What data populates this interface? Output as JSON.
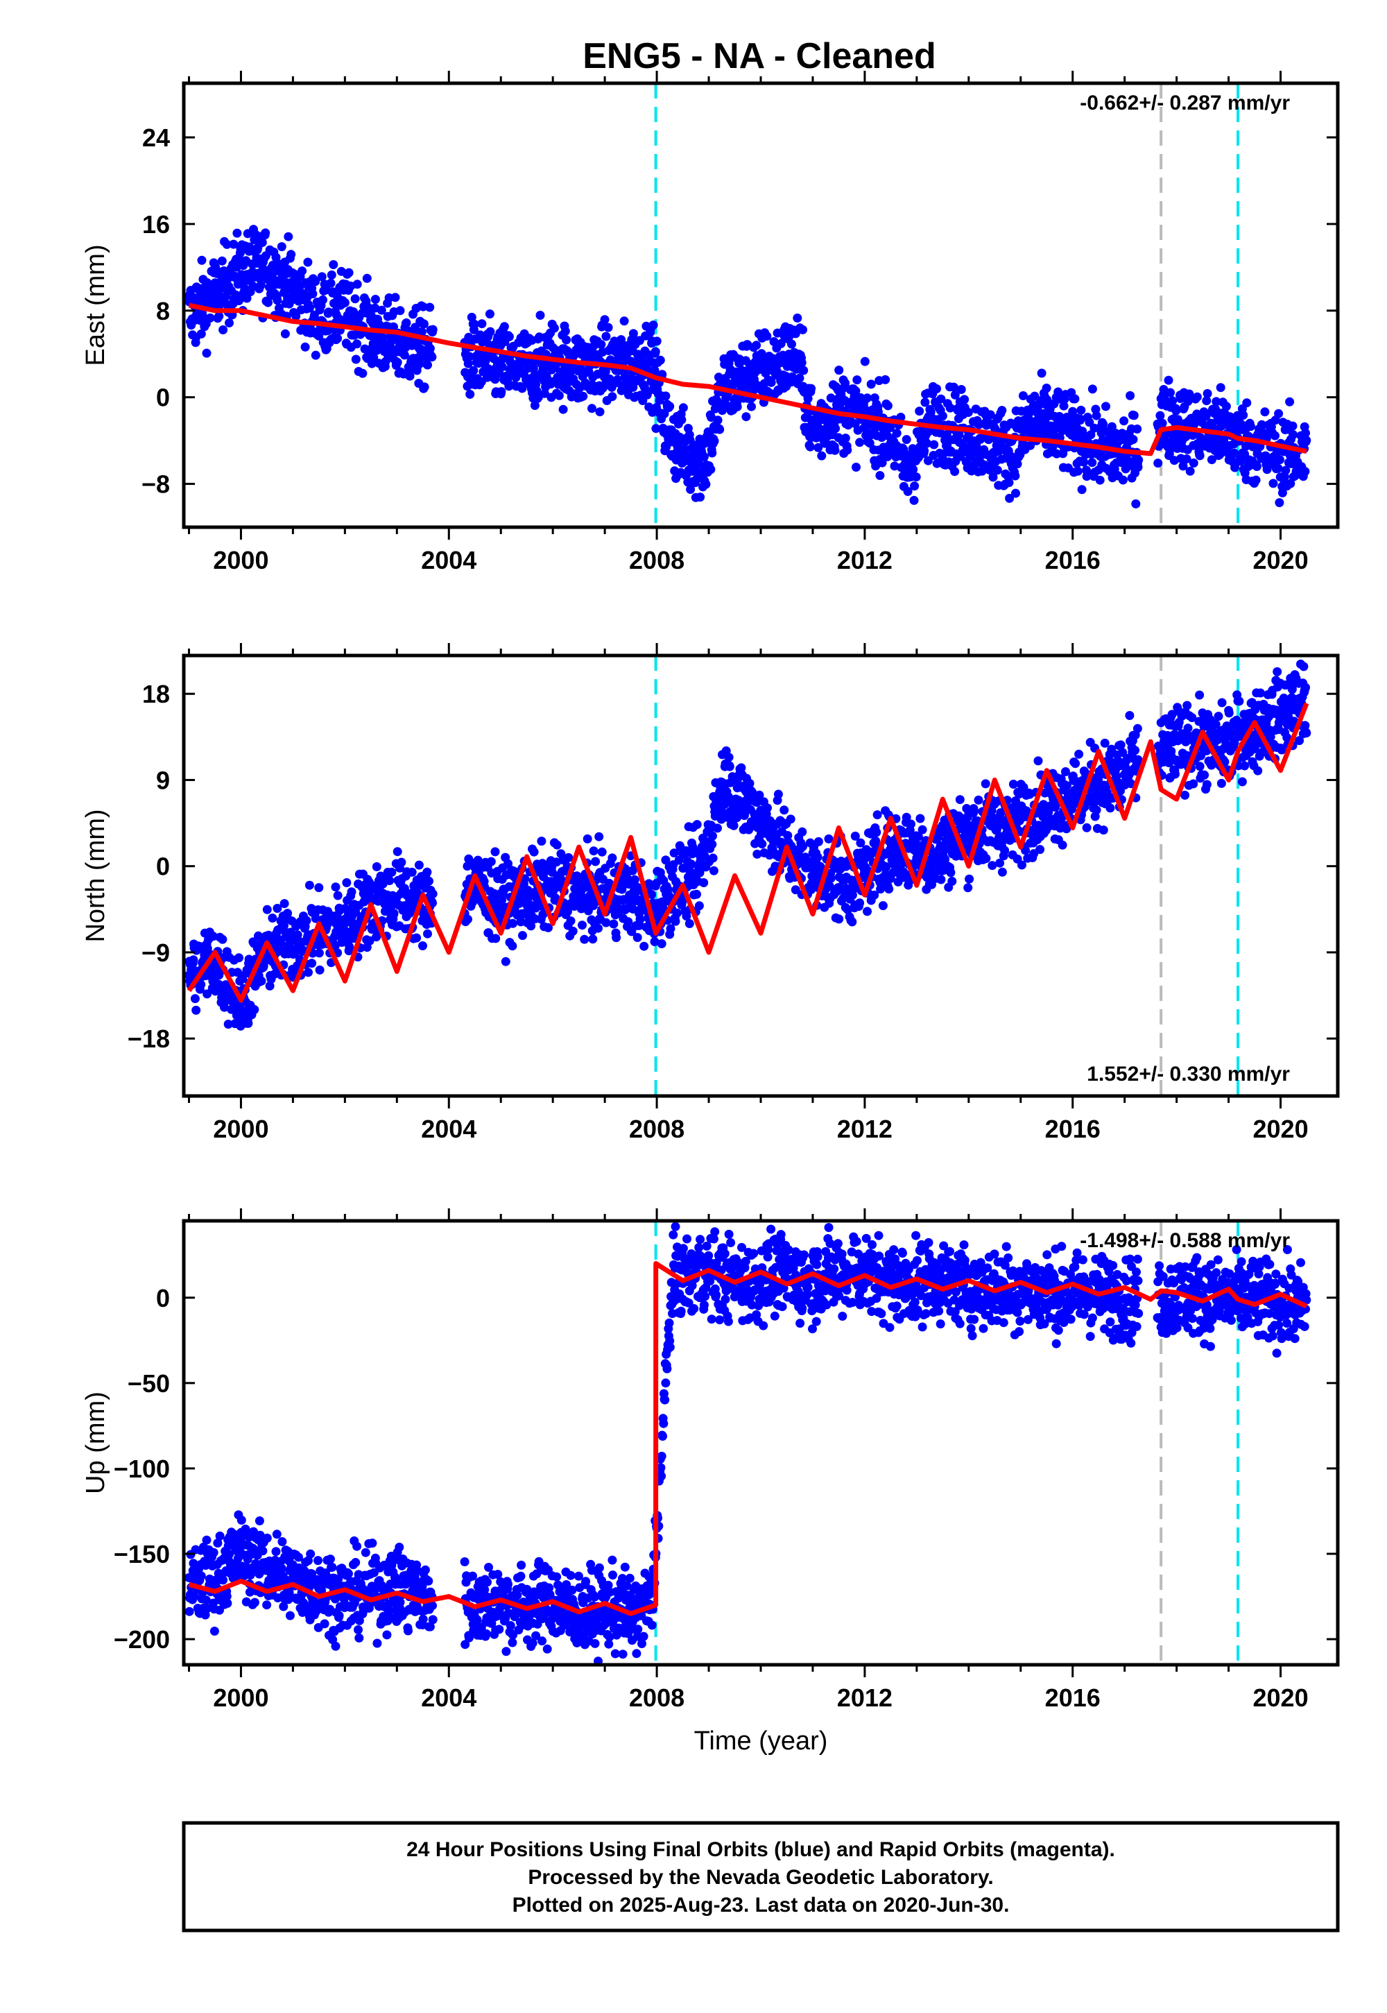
{
  "chart_data": {
    "title": "ENG5  - NA - Cleaned",
    "type": "scatter",
    "xlabel": "Time (year)",
    "xlim": [
      1998.9,
      2021.1
    ],
    "x_ticks": [
      2000,
      2004,
      2008,
      2012,
      2016,
      2020
    ],
    "steps": [
      2007.98,
      2019.18
    ],
    "equipment_change": [
      2017.7
    ],
    "last_data": 2020.5,
    "colors": {
      "final_orbits": "#0000ff",
      "model": "#ff0000",
      "step_line": "#00e5ee",
      "equip_line": "#bbbbbb",
      "frame": "#000000"
    },
    "panels": [
      {
        "name": "east",
        "ylabel": "East (mm)",
        "ylim": [
          -12,
          29
        ],
        "y_ticks": [
          -8,
          0,
          8,
          16,
          24
        ],
        "y_tick_labels": [
          "−8",
          "0",
          "8",
          "16",
          "24"
        ],
        "rate_label": "-0.662+/- 0.287 mm/yr",
        "rate_position": "top-right",
        "series": [
          {
            "name": "final-orbits-east",
            "x": [
              1999.0,
              1999.5,
              2000.0,
              2000.5,
              2001.0,
              2001.5,
              2002.0,
              2002.5,
              2003.0,
              2003.5,
              2004.5,
              2005.0,
              2005.5,
              2006.0,
              2006.5,
              2007.0,
              2007.5,
              2007.9,
              2008.2,
              2008.5,
              2008.9,
              2009.3,
              2009.8,
              2010.3,
              2010.7,
              2011.0,
              2011.5,
              2012.0,
              2012.5,
              2012.8,
              2013.3,
              2013.8,
              2014.3,
              2014.8,
              2015.3,
              2015.7,
              2016.2,
              2016.7,
              2017.2,
              2017.8,
              2018.3,
              2018.8,
              2019.3,
              2019.8,
              2020.3
            ],
            "values": [
              7.5,
              9.5,
              11.5,
              12,
              10,
              7.5,
              8,
              6,
              5,
              4.5,
              3.5,
              3,
              2.5,
              3.5,
              2.5,
              3,
              3,
              3.5,
              -3,
              -5,
              -6,
              1,
              2,
              3,
              4,
              -3,
              -1,
              -2,
              -3,
              -7,
              -2,
              -3,
              -4,
              -5,
              -2,
              -3,
              -4,
              -5,
              -5,
              -2,
              -3,
              -3,
              -4,
              -5,
              -5.5
            ]
          },
          {
            "name": "model-east",
            "x": [
              1999.0,
              1999.5,
              2000.0,
              2000.5,
              2001.0,
              2001.5,
              2002.0,
              2002.5,
              2003.0,
              2003.5,
              2004.0,
              2004.5,
              2005.0,
              2005.5,
              2006.0,
              2006.5,
              2007.0,
              2007.5,
              2007.98,
              2008.5,
              2009.0,
              2009.5,
              2010.0,
              2010.5,
              2011.0,
              2011.5,
              2012.0,
              2012.5,
              2013.0,
              2013.5,
              2014.0,
              2014.5,
              2015.0,
              2015.5,
              2016.0,
              2016.5,
              2017.0,
              2017.5,
              2017.7,
              2018.0,
              2018.5,
              2019.0,
              2019.18,
              2019.5,
              2020.0,
              2020.5
            ],
            "values": [
              8.5,
              8,
              8,
              7.5,
              7,
              6.8,
              6.5,
              6.2,
              6,
              5.5,
              5,
              4.6,
              4.2,
              3.8,
              3.5,
              3.2,
              3,
              2.7,
              1.8,
              1.2,
              1,
              0.5,
              0,
              -0.5,
              -1,
              -1.5,
              -1.8,
              -2.2,
              -2.5,
              -2.8,
              -3,
              -3.4,
              -3.8,
              -4,
              -4.3,
              -4.6,
              -5,
              -5.2,
              -3,
              -2.8,
              -3.1,
              -3.4,
              -3.8,
              -4,
              -4.5,
              -5
            ]
          }
        ]
      },
      {
        "name": "north",
        "ylabel": "North (mm)",
        "ylim": [
          -24,
          22
        ],
        "y_ticks": [
          -18,
          -9,
          0,
          9,
          18
        ],
        "y_tick_labels": [
          "−18",
          "−9",
          "0",
          "9",
          "18"
        ],
        "rate_label": "1.552+/- 0.330 mm/yr",
        "rate_position": "bottom-right",
        "series": [
          {
            "name": "final-orbits-north",
            "x": [
              1999.0,
              1999.5,
              2000.0,
              2000.5,
              2001.0,
              2001.5,
              2002.0,
              2002.5,
              2003.0,
              2003.5,
              2004.5,
              2005.0,
              2005.5,
              2006.0,
              2006.5,
              2007.0,
              2007.5,
              2007.9,
              2008.3,
              2008.8,
              2009.3,
              2009.8,
              2010.3,
              2010.8,
              2011.3,
              2011.8,
              2012.3,
              2012.8,
              2013.3,
              2013.8,
              2014.3,
              2014.8,
              2015.3,
              2015.8,
              2016.3,
              2016.8,
              2017.3,
              2017.8,
              2018.3,
              2018.8,
              2019.3,
              2019.8,
              2020.3
            ],
            "values": [
              -11,
              -10,
              -14,
              -9,
              -8,
              -7,
              -6,
              -4,
              -3,
              -4,
              -2,
              -4,
              -3,
              -2,
              -3,
              -3,
              -3,
              -5,
              -2,
              -1,
              9,
              6,
              3,
              0,
              -1,
              -2,
              1,
              2,
              1,
              3,
              4,
              4,
              6,
              7,
              8,
              9,
              11,
              12,
              13,
              12,
              14,
              15,
              17
            ]
          },
          {
            "name": "model-north",
            "x": [
              1999.0,
              1999.5,
              2000.0,
              2000.5,
              2001.0,
              2001.5,
              2002.0,
              2002.5,
              2003.0,
              2003.5,
              2004.0,
              2004.5,
              2005.0,
              2005.5,
              2006.0,
              2006.5,
              2007.0,
              2007.5,
              2007.98,
              2008.5,
              2009.0,
              2009.5,
              2010.0,
              2010.5,
              2011.0,
              2011.5,
              2012.0,
              2012.5,
              2013.0,
              2013.5,
              2014.0,
              2014.5,
              2015.0,
              2015.5,
              2016.0,
              2016.5,
              2017.0,
              2017.5,
              2017.7,
              2018.0,
              2018.5,
              2019.0,
              2019.18,
              2019.5,
              2020.0,
              2020.5
            ],
            "values": [
              -13,
              -9,
              -14,
              -8,
              -13,
              -6,
              -12,
              -4,
              -11,
              -3,
              -9,
              -1,
              -7,
              1,
              -6,
              2,
              -5,
              3,
              -7,
              -2,
              -9,
              -1,
              -7,
              2,
              -5,
              4,
              -3,
              5,
              -2,
              7,
              0,
              9,
              2,
              10,
              4,
              12,
              5,
              13,
              8,
              7,
              14,
              9,
              12,
              15,
              10,
              17
            ]
          }
        ]
      },
      {
        "name": "up",
        "ylabel": "Up (mm)",
        "ylim": [
          -215,
          45
        ],
        "y_ticks": [
          -200,
          -150,
          -100,
          -50,
          0
        ],
        "y_tick_labels": [
          "−200",
          "−150",
          "−100",
          "−50",
          "0"
        ],
        "rate_label": "-1.498+/- 0.588 mm/yr",
        "rate_position": "top-right",
        "series": [
          {
            "name": "final-orbits-up",
            "x": [
              1999.0,
              1999.5,
              2000.0,
              2000.5,
              2001.0,
              2001.5,
              2002.0,
              2002.5,
              2003.0,
              2003.5,
              2004.5,
              2005.0,
              2005.5,
              2006.0,
              2006.5,
              2007.0,
              2007.5,
              2007.9,
              2008.3,
              2008.8,
              2009.3,
              2009.8,
              2010.3,
              2010.8,
              2011.3,
              2011.8,
              2012.3,
              2012.8,
              2013.3,
              2013.8,
              2014.3,
              2014.8,
              2015.3,
              2015.8,
              2016.3,
              2016.8,
              2017.3,
              2017.8,
              2018.3,
              2018.8,
              2019.3,
              2019.8,
              2020.3
            ],
            "values": [
              -170,
              -165,
              -150,
              -160,
              -165,
              -170,
              -175,
              -172,
              -170,
              -175,
              -180,
              -178,
              -182,
              -178,
              -185,
              -182,
              -185,
              -180,
              10,
              15,
              12,
              8,
              14,
              10,
              12,
              16,
              10,
              8,
              10,
              8,
              5,
              6,
              4,
              2,
              3,
              0,
              -2,
              0,
              2,
              -1,
              0,
              -3,
              -5
            ]
          },
          {
            "name": "model-up",
            "x": [
              1999.0,
              1999.5,
              2000.0,
              2000.5,
              2001.0,
              2001.5,
              2002.0,
              2002.5,
              2003.0,
              2003.5,
              2004.0,
              2004.5,
              2005.0,
              2005.5,
              2006.0,
              2006.5,
              2007.0,
              2007.5,
              2007.98,
              2007.981,
              2008.5,
              2009.0,
              2009.5,
              2010.0,
              2010.5,
              2011.0,
              2011.5,
              2012.0,
              2012.5,
              2013.0,
              2013.5,
              2014.0,
              2014.5,
              2015.0,
              2015.5,
              2016.0,
              2016.5,
              2017.0,
              2017.5,
              2017.7,
              2018.0,
              2018.5,
              2019.0,
              2019.18,
              2019.5,
              2020.0,
              2020.5
            ],
            "values": [
              -168,
              -172,
              -166,
              -172,
              -168,
              -175,
              -171,
              -177,
              -173,
              -178,
              -175,
              -181,
              -177,
              -182,
              -178,
              -184,
              -179,
              -185,
              -180,
              20,
              10,
              16,
              9,
              15,
              8,
              14,
              7,
              13,
              6,
              11,
              5,
              10,
              4,
              9,
              3,
              8,
              2,
              6,
              -1,
              4,
              3,
              -2,
              5,
              -1,
              -4,
              2,
              -5
            ]
          }
        ]
      }
    ],
    "footer": [
      "24 Hour Positions Using Final Orbits (blue) and Rapid Orbits (magenta).",
      "Processed by the Nevada Geodetic Laboratory.",
      "Plotted on 2025-Aug-23. Last data on 2020-Jun-30."
    ]
  }
}
